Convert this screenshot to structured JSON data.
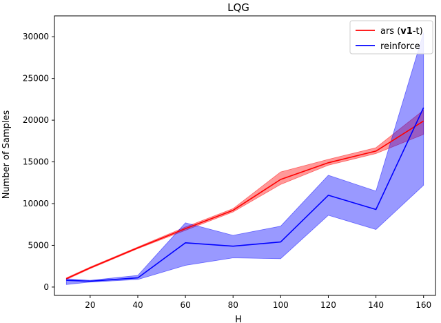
{
  "chart_data": {
    "type": "line",
    "title": "LQG",
    "xlabel": "H",
    "ylabel": "Number of Samples",
    "xlim": [
      5,
      165
    ],
    "ylim": [
      -1000,
      32500
    ],
    "xticks": [
      20,
      40,
      60,
      80,
      100,
      120,
      140,
      160
    ],
    "yticks": [
      0,
      5000,
      10000,
      15000,
      20000,
      25000,
      30000
    ],
    "legend_position": "top-right",
    "series": [
      {
        "name": "ars (v1-t)",
        "legend_parts": [
          "ars (",
          "v1",
          "-t)"
        ],
        "color": "#ff0000",
        "fill": "#ff0000",
        "x": [
          10,
          20,
          40,
          60,
          80,
          100,
          120,
          140,
          160
        ],
        "mean": [
          1000,
          2300,
          4700,
          7000,
          9200,
          12900,
          14900,
          16300,
          19900
        ],
        "lower": [
          900,
          2200,
          4600,
          6800,
          9000,
          12300,
          14600,
          16000,
          18300
        ],
        "upper": [
          1100,
          2400,
          4800,
          7200,
          9400,
          13800,
          15300,
          16700,
          21200
        ]
      },
      {
        "name": "reinforce",
        "legend_parts": [
          "reinforce"
        ],
        "color": "#0000ff",
        "fill": "#0000ff",
        "x": [
          10,
          20,
          40,
          60,
          80,
          100,
          120,
          140,
          160
        ],
        "mean": [
          800,
          700,
          1100,
          5300,
          4900,
          5400,
          11000,
          9300,
          21500
        ],
        "lower": [
          300,
          600,
          900,
          2600,
          3500,
          3400,
          8600,
          6900,
          12200
        ],
        "upper": [
          1000,
          800,
          1400,
          7700,
          6200,
          7300,
          13400,
          11500,
          30500
        ]
      }
    ]
  }
}
